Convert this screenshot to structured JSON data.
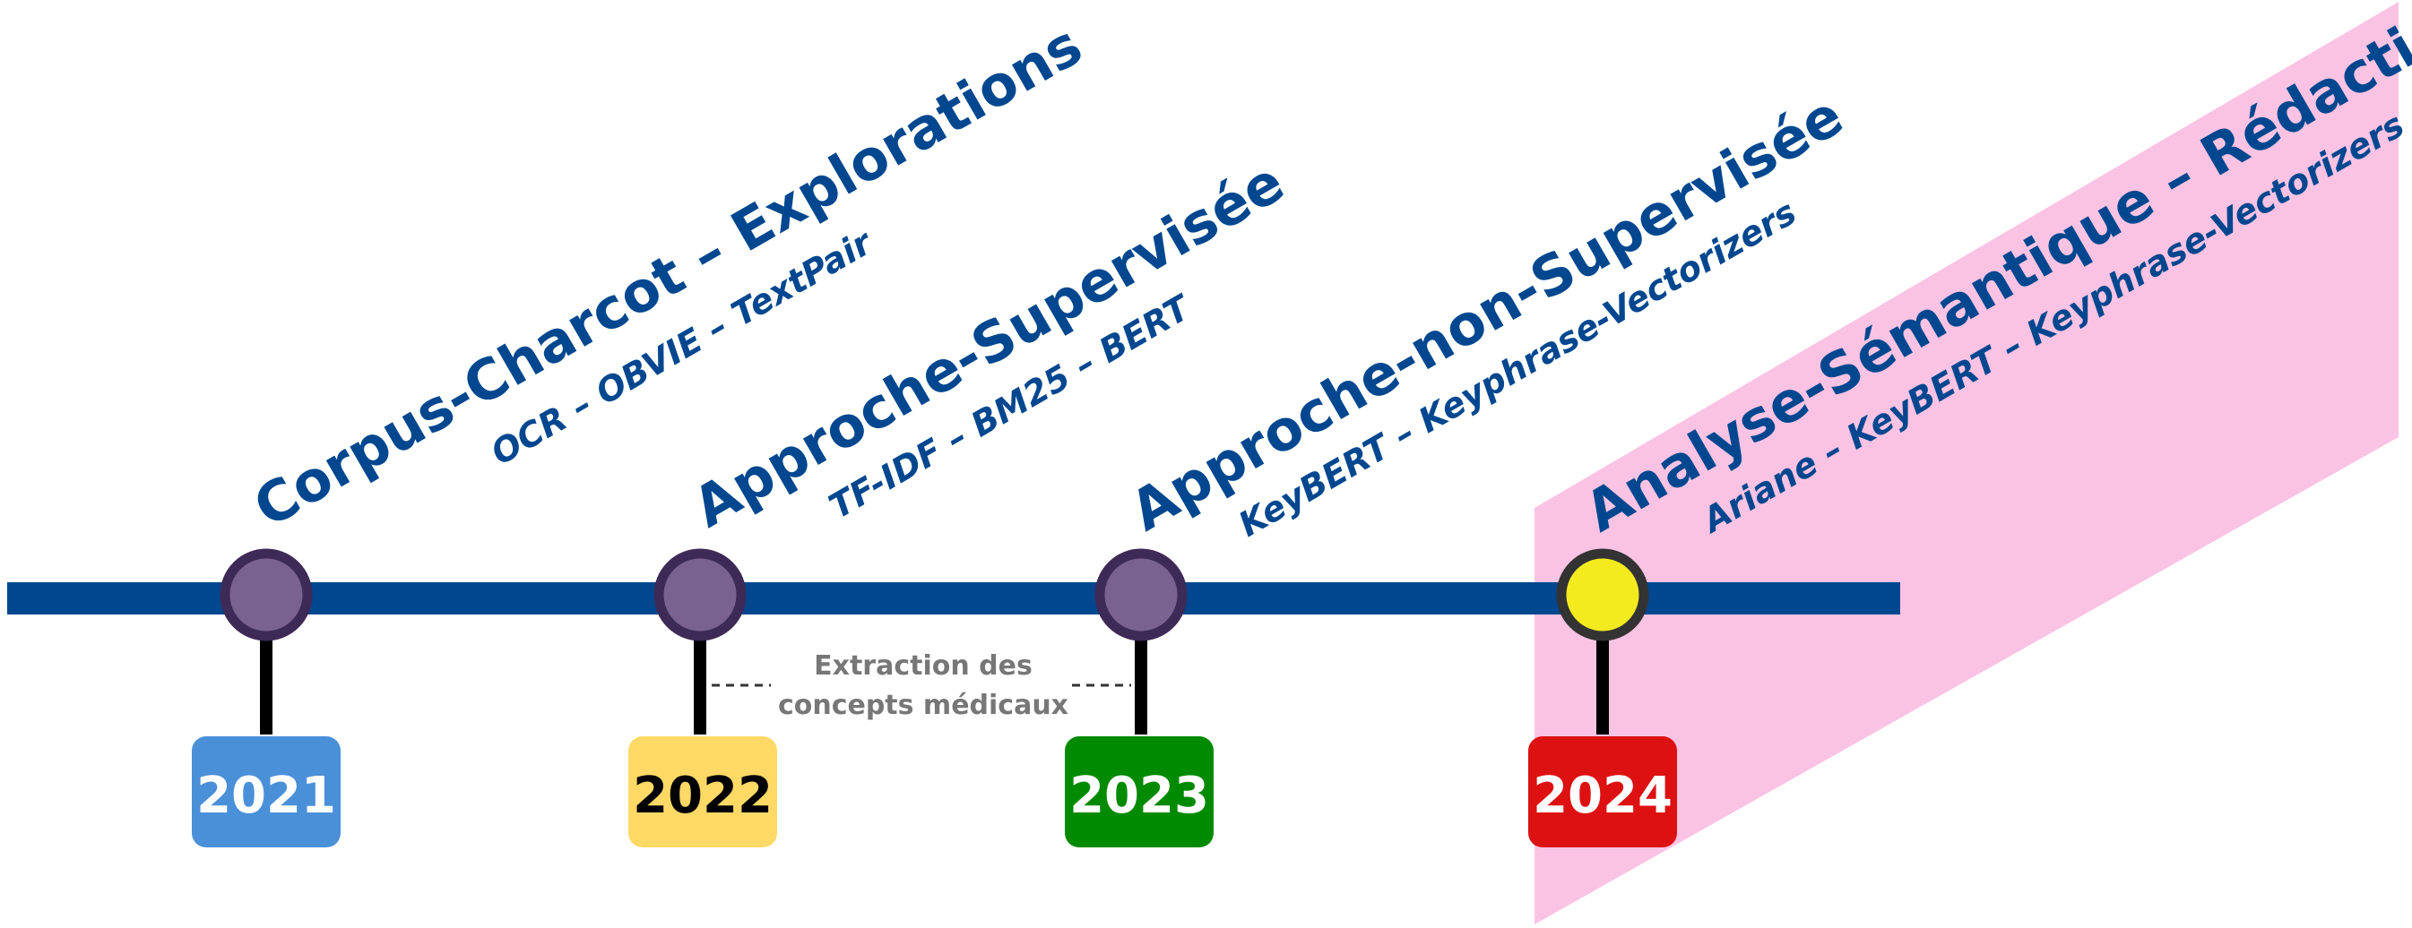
{
  "milestones": [
    {
      "year": "2021",
      "title": "Corpus-Charcot – Explorations",
      "subtitle": "OCR – OBVIE – TextPair",
      "badge_color": "#4A90D9",
      "badge_text_color": "#FFFFFF",
      "node_color": "#7A6290"
    },
    {
      "year": "2022",
      "title": "Approche-Supervisée",
      "subtitle": "TF-IDF – BM25 – BERT",
      "badge_color": "#FFD966",
      "badge_text_color": "#000000",
      "node_color": "#7A6290"
    },
    {
      "year": "2023",
      "title": "Approche-non-Supervisée",
      "subtitle": "KeyBERT – Keyphrase-Vectorizers",
      "badge_color": "#008A00",
      "badge_text_color": "#FFFFFF",
      "node_color": "#7A6290"
    },
    {
      "year": "2024",
      "title": "Analyse-Sémantique – Rédaction",
      "subtitle": "Ariane – KeyBERT – Keyphrase-Vectorizers",
      "badge_color": "#DD1111",
      "badge_text_color": "#FFFFFF",
      "node_color": "#F3EB1E"
    }
  ],
  "extraction_note": {
    "line1": "Extraction des",
    "line2": "concepts médicaux"
  },
  "colors": {
    "timeline": "#00478F",
    "title_text": "#00478F",
    "node_ring": "#3E2A56",
    "node_ring_current": "#333333",
    "highlight_band": "#FBC3E3",
    "note_text": "#777777"
  }
}
